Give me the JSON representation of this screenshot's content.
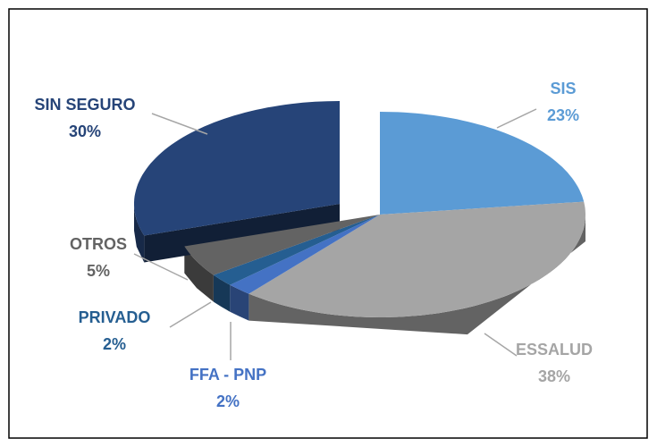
{
  "chart_data": {
    "type": "pie3d",
    "categories": [
      "SIS",
      "ESSALUD",
      "FFA - PNP",
      "PRIVADO",
      "OTROS",
      "SIN SEGURO"
    ],
    "values": [
      23,
      38,
      2,
      2,
      5,
      30
    ],
    "value_labels": [
      "23%",
      "38%",
      "2%",
      "2%",
      "5%",
      "30%"
    ],
    "colors": [
      "#5b9bd5",
      "#a5a5a5",
      "#4472c4",
      "#255e91",
      "#636363",
      "#264478"
    ],
    "exploded": [
      5
    ]
  }
}
